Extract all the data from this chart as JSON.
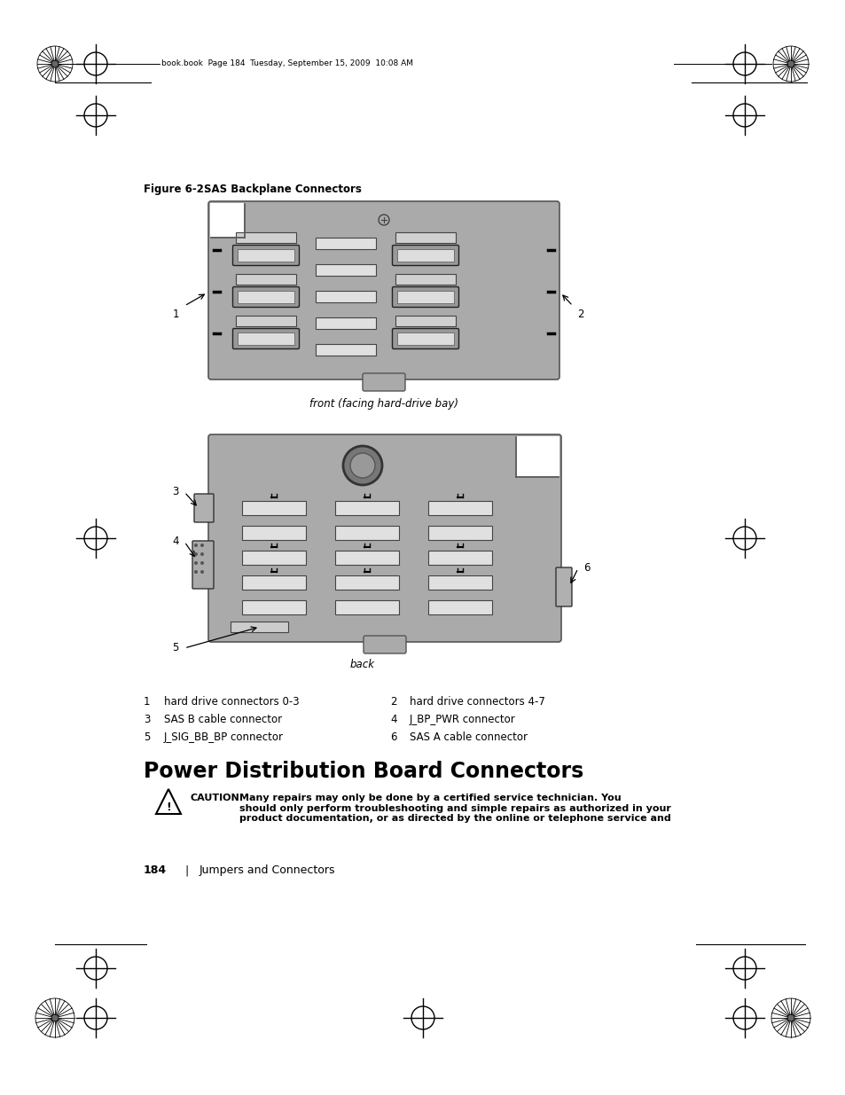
{
  "bg_color": "#ffffff",
  "header_text": "book.book  Page 184  Tuesday, September 15, 2009  10:08 AM",
  "figure_label": "Figure 6-2.",
  "figure_title": "   SAS Backplane Connectors",
  "front_label": "front (facing hard-drive bay)",
  "back_label": "back",
  "section_title": "Power Distribution Board Connectors",
  "caution_label": "CAUTION:",
  "caution_body": "Many repairs may only be done by a certified service technician. You\nshould only perform troubleshooting and simple repairs as authorized in your\nproduct documentation, or as directed by the online or telephone service and",
  "footer_page": "184",
  "footer_sep": "|",
  "footer_text": "Jumpers and Connectors",
  "legend": [
    [
      "1",
      "hard drive connectors 0-3",
      "2",
      "hard drive connectors 4-7"
    ],
    [
      "3",
      "SAS B cable connector",
      "4",
      "J_BP_PWR connector"
    ],
    [
      "5",
      "J_SIG_BB_BP connector",
      "6",
      "SAS A cable connector"
    ]
  ],
  "board_color": "#aaaaaa",
  "board_border": "#555555",
  "slot_color": "#e8e8e8",
  "slot_dark": "#cccccc"
}
